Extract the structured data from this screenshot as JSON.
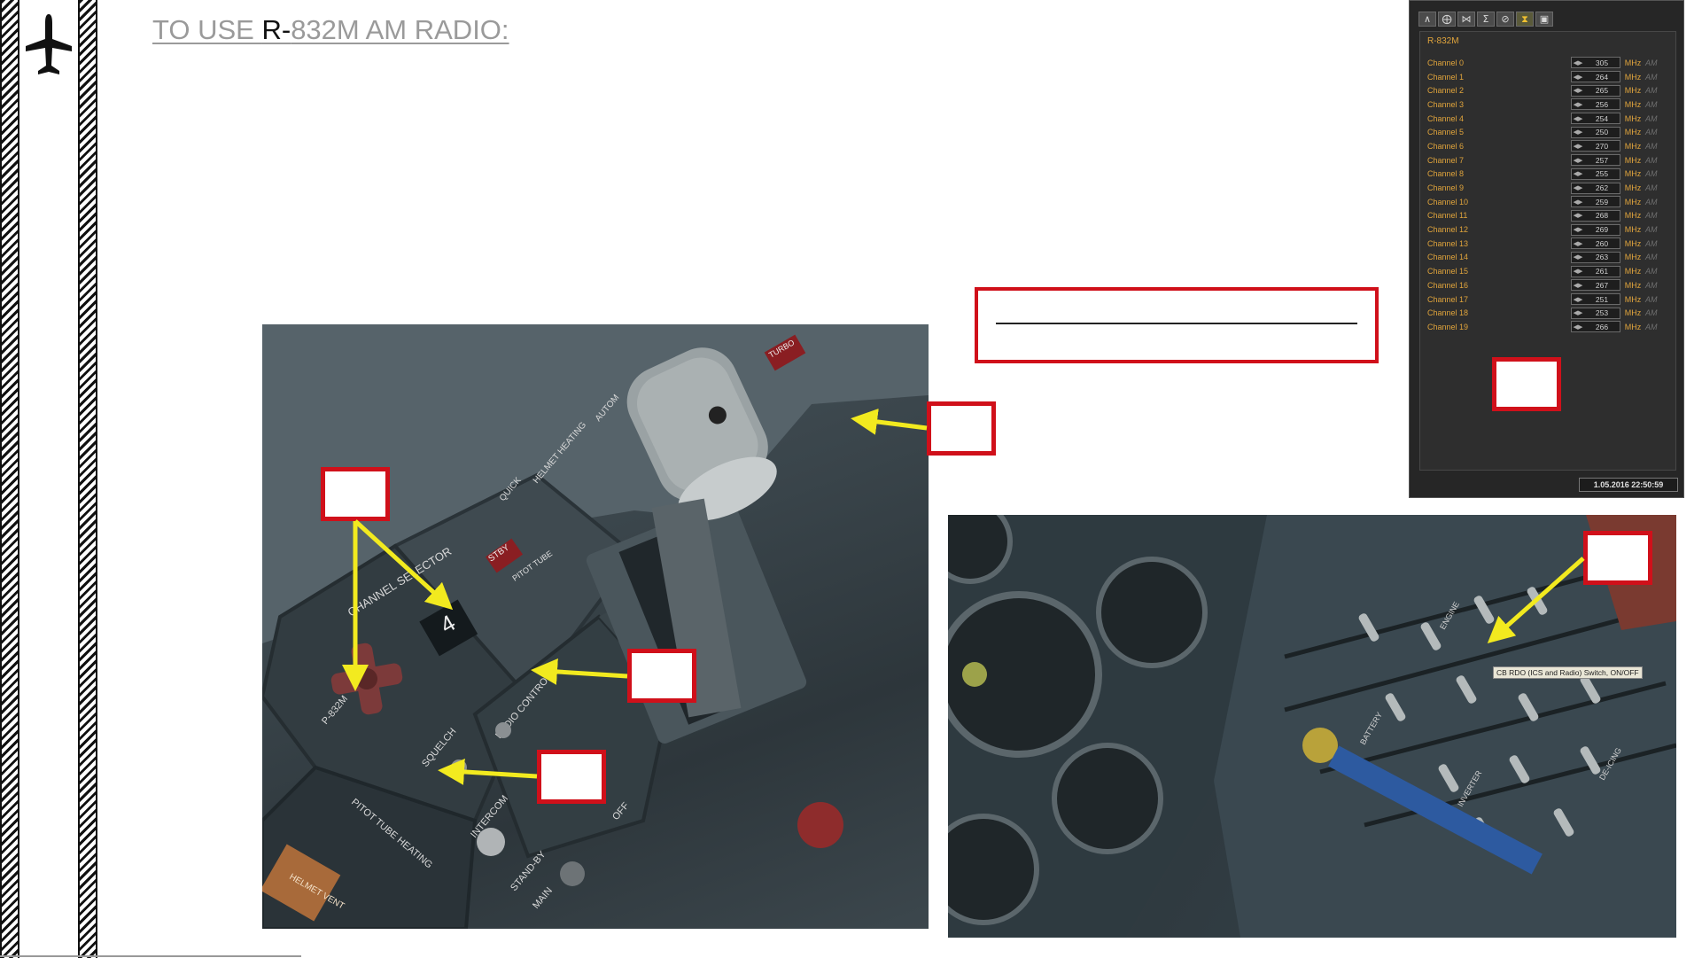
{
  "title": {
    "part1": "TO USE ",
    "part2": "R-",
    "part3": "832M AM RADIO:"
  },
  "radio_panel": {
    "name": "R-832M",
    "toolbar_icons": [
      "aircraft-icon",
      "crosshair-icon",
      "network-icon",
      "sigma-icon",
      "no-entry-icon",
      "radio-icon",
      "vehicle-icon"
    ],
    "active_icon": "radio-icon",
    "channels": [
      {
        "label": "Channel 0",
        "freq": "305",
        "unit": "MHz",
        "mod": "AM"
      },
      {
        "label": "Channel 1",
        "freq": "264",
        "unit": "MHz",
        "mod": "AM"
      },
      {
        "label": "Channel 2",
        "freq": "265",
        "unit": "MHz",
        "mod": "AM"
      },
      {
        "label": "Channel 3",
        "freq": "256",
        "unit": "MHz",
        "mod": "AM"
      },
      {
        "label": "Channel 4",
        "freq": "254",
        "unit": "MHz",
        "mod": "AM"
      },
      {
        "label": "Channel 5",
        "freq": "250",
        "unit": "MHz",
        "mod": "AM"
      },
      {
        "label": "Channel 6",
        "freq": "270",
        "unit": "MHz",
        "mod": "AM"
      },
      {
        "label": "Channel 7",
        "freq": "257",
        "unit": "MHz",
        "mod": "AM"
      },
      {
        "label": "Channel 8",
        "freq": "255",
        "unit": "MHz",
        "mod": "AM"
      },
      {
        "label": "Channel 9",
        "freq": "262",
        "unit": "MHz",
        "mod": "AM"
      },
      {
        "label": "Channel 10",
        "freq": "259",
        "unit": "MHz",
        "mod": "AM"
      },
      {
        "label": "Channel 11",
        "freq": "268",
        "unit": "MHz",
        "mod": "AM"
      },
      {
        "label": "Channel 12",
        "freq": "269",
        "unit": "MHz",
        "mod": "AM"
      },
      {
        "label": "Channel 13",
        "freq": "260",
        "unit": "MHz",
        "mod": "AM"
      },
      {
        "label": "Channel 14",
        "freq": "263",
        "unit": "MHz",
        "mod": "AM"
      },
      {
        "label": "Channel 15",
        "freq": "261",
        "unit": "MHz",
        "mod": "AM"
      },
      {
        "label": "Channel 16",
        "freq": "267",
        "unit": "MHz",
        "mod": "AM"
      },
      {
        "label": "Channel 17",
        "freq": "251",
        "unit": "MHz",
        "mod": "AM"
      },
      {
        "label": "Channel 18",
        "freq": "253",
        "unit": "MHz",
        "mod": "AM"
      },
      {
        "label": "Channel 19",
        "freq": "266",
        "unit": "MHz",
        "mod": "AM"
      }
    ],
    "date": "1.05.2016 22:50:59"
  },
  "photo_left": {
    "labels": {
      "channel_selector": "CHANNEL SELECTOR",
      "radio_model": "P-832M",
      "radio_control": "RADIO CONTROL",
      "squelch": "SQUELCH",
      "intercom": "INTERCOM",
      "stand_by": "STAND-BY",
      "main": "MAIN",
      "off": "OFF",
      "pitot_tube_heating": "PITOT TUBE HEATING",
      "helmet_heating": "HELMET HEATING",
      "autom": "AUTOM",
      "quick": "QUICK",
      "stby": "STBY",
      "pitot_tube": "PITOT TUBE",
      "channel_digit": "4",
      "turbo": "TURBO",
      "helmet_vent": "HELMET VENT"
    }
  },
  "photo_right": {
    "tooltip": "CB RDO (ICS and Radio) Switch, ON/OFF",
    "labels": {
      "battery": "BATTERY",
      "inverter": "INVERTER",
      "de_icing": "DE-ICING",
      "engine": "ENGINE"
    }
  },
  "colors": {
    "callout_border": "#d0101a",
    "arrow": "#f2ea1f",
    "panel_text": "#e0a43c",
    "title_gray": "#9a9a9a"
  }
}
